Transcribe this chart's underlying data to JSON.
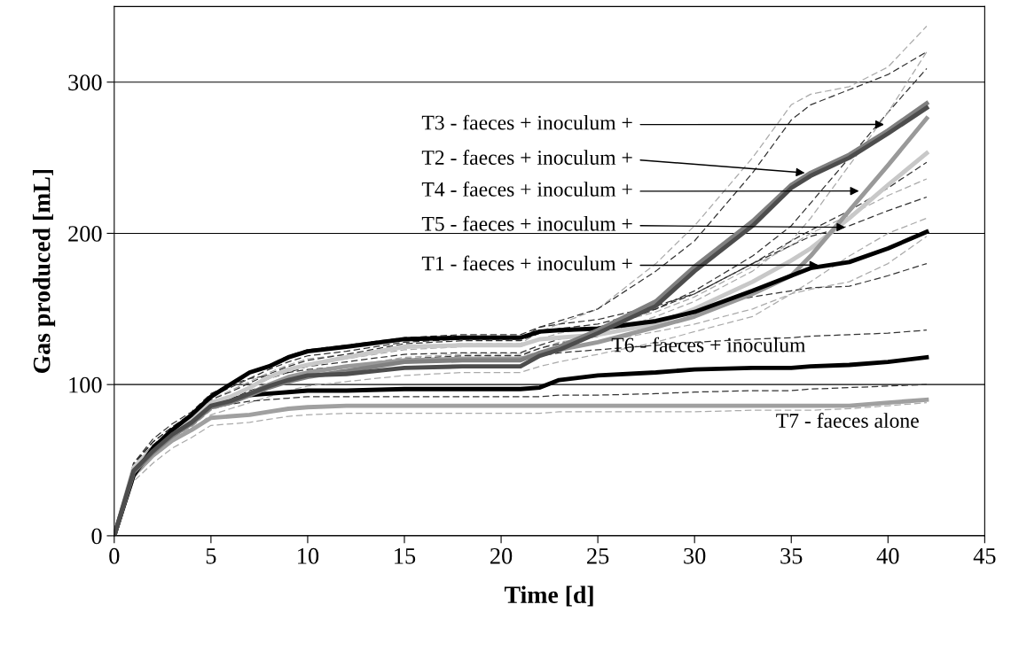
{
  "chart_data": {
    "type": "line",
    "xlabel": "Time [d]",
    "ylabel": "Gas produced [mL]",
    "x": [
      0,
      1,
      2,
      3,
      4,
      5,
      6,
      7,
      8,
      9,
      10,
      12,
      15,
      18,
      21,
      22,
      23,
      25,
      28,
      30,
      33,
      35,
      36,
      38,
      40,
      42
    ],
    "xlim": [
      0,
      45
    ],
    "xticks": [
      0,
      5,
      10,
      15,
      20,
      25,
      30,
      35,
      40,
      45
    ],
    "ylim": [
      0,
      350
    ],
    "yticks": [
      0,
      100,
      200,
      300
    ],
    "grid": "y",
    "series": [
      {
        "color": "#aaaaaa",
        "line_style": "dashed",
        "values": [
          0,
          45,
          60,
          70,
          78,
          90,
          96,
          102,
          108,
          113,
          117,
          120,
          125,
          127,
          127,
          135,
          140,
          150,
          180,
          205,
          250,
          285,
          292,
          297,
          310,
          337
        ]
      },
      {
        "color": "#333333",
        "line_style": "dashed",
        "values": [
          0,
          48,
          62,
          72,
          80,
          92,
          98,
          104,
          110,
          115,
          119,
          122,
          128,
          130,
          130,
          138,
          142,
          150,
          175,
          195,
          240,
          275,
          285,
          295,
          305,
          320
        ]
      },
      {
        "color": "#333333",
        "line_style": "dashed",
        "values": [
          0,
          44,
          58,
          68,
          76,
          88,
          92,
          98,
          104,
          108,
          112,
          115,
          120,
          121,
          121,
          126,
          130,
          135,
          150,
          162,
          185,
          205,
          220,
          250,
          280,
          309
        ]
      },
      {
        "color": "#aaaaaa",
        "line_style": "dashed",
        "values": [
          0,
          42,
          55,
          65,
          73,
          84,
          88,
          94,
          100,
          104,
          108,
          112,
          118,
          120,
          120,
          124,
          128,
          132,
          145,
          155,
          175,
          195,
          210,
          245,
          280,
          320
        ]
      },
      {
        "color": "#333333",
        "line_style": "dashed",
        "values": [
          0,
          46,
          60,
          70,
          79,
          90,
          95,
          101,
          107,
          112,
          116,
          120,
          127,
          129,
          129,
          134,
          137,
          140,
          150,
          160,
          180,
          195,
          202,
          215,
          230,
          247
        ]
      },
      {
        "color": "#aaaaaa",
        "line_style": "dashed",
        "values": [
          0,
          44,
          57,
          67,
          76,
          87,
          92,
          98,
          104,
          109,
          113,
          117,
          123,
          125,
          125,
          130,
          134,
          138,
          148,
          158,
          178,
          192,
          200,
          212,
          225,
          236
        ]
      },
      {
        "color": "#333333",
        "line_style": "dashed",
        "values": [
          0,
          47,
          62,
          72,
          81,
          93,
          101,
          108,
          113,
          119,
          123,
          126,
          131,
          133,
          133,
          138,
          140,
          143,
          152,
          160,
          180,
          192,
          198,
          205,
          215,
          224
        ]
      },
      {
        "color": "#aaaaaa",
        "line_style": "dashed",
        "values": [
          0,
          40,
          54,
          64,
          72,
          83,
          88,
          93,
          98,
          102,
          106,
          110,
          115,
          118,
          118,
          122,
          125,
          128,
          135,
          140,
          150,
          160,
          163,
          168,
          180,
          198
        ]
      },
      {
        "color": "#333333",
        "line_style": "dashed",
        "values": [
          0,
          42,
          56,
          66,
          74,
          85,
          90,
          96,
          100,
          105,
          108,
          112,
          117,
          119,
          119,
          124,
          127,
          132,
          142,
          150,
          158,
          162,
          164,
          165,
          172,
          180
        ]
      },
      {
        "color": "#aaaaaa",
        "line_style": "dashed",
        "values": [
          0,
          38,
          52,
          62,
          70,
          80,
          84,
          88,
          92,
          96,
          99,
          102,
          106,
          108,
          108,
          112,
          115,
          120,
          128,
          135,
          145,
          160,
          168,
          185,
          200,
          210
        ]
      },
      {
        "color": "#333333",
        "line_style": "dashed",
        "values": [
          0,
          48,
          64,
          74,
          82,
          94,
          100,
          104,
          106,
          108,
          110,
          112,
          115,
          117,
          117,
          119,
          121,
          123,
          126,
          128,
          130,
          131,
          132,
          133,
          134,
          136
        ]
      },
      {
        "color": "#333333",
        "line_style": "dashed",
        "values": [
          0,
          40,
          55,
          66,
          74,
          84,
          87,
          89,
          90,
          91,
          92,
          92,
          92,
          92,
          92,
          92,
          93,
          93,
          94,
          95,
          96,
          96,
          97,
          98,
          99,
          100
        ]
      },
      {
        "color": "#aaaaaa",
        "line_style": "dashed",
        "values": [
          0,
          36,
          48,
          58,
          65,
          73,
          74,
          75,
          77,
          79,
          80,
          81,
          81,
          81,
          81,
          81,
          82,
          82,
          82,
          82,
          83,
          83,
          83,
          84,
          86,
          88
        ]
      },
      {
        "color": "#a0a0a0",
        "line_style": "solid",
        "values": [
          0,
          40,
          53,
          63,
          70,
          78,
          79,
          80,
          82,
          84,
          85,
          86,
          86,
          86,
          86,
          86,
          86,
          86,
          86,
          86,
          86,
          86,
          86,
          86,
          88,
          90
        ]
      },
      {
        "color": "#000000",
        "line_style": "solid",
        "values": [
          0,
          42,
          57,
          68,
          76,
          86,
          90,
          93,
          94,
          95,
          96,
          96,
          97,
          97,
          97,
          98,
          103,
          106,
          108,
          110,
          111,
          111,
          112,
          113,
          115,
          118
        ]
      },
      {
        "color": "#c8c8c8",
        "line_style": "solid",
        "values": [
          0,
          45,
          58,
          68,
          77,
          88,
          92,
          98,
          105,
          110,
          113,
          118,
          125,
          126,
          126,
          130,
          131,
          133,
          140,
          150,
          168,
          182,
          190,
          210,
          232,
          253
        ]
      },
      {
        "color": "#999999",
        "line_style": "solid",
        "values": [
          0,
          42,
          56,
          66,
          75,
          85,
          88,
          94,
          100,
          105,
          108,
          112,
          116,
          117,
          117,
          120,
          123,
          128,
          138,
          145,
          160,
          172,
          185,
          215,
          245,
          276
        ]
      },
      {
        "color": "#000000",
        "line_style": "solid",
        "values": [
          0,
          40,
          58,
          70,
          80,
          92,
          100,
          108,
          112,
          118,
          122,
          125,
          130,
          131,
          131,
          135,
          136,
          137,
          142,
          148,
          162,
          172,
          177,
          181,
          190,
          201
        ]
      },
      {
        "color": "#808080",
        "line_style": "solid",
        "values": [
          0,
          42,
          55,
          66,
          74,
          85,
          88,
          93,
          98,
          102,
          105,
          109,
          115,
          116,
          116,
          121,
          125,
          136,
          155,
          178,
          208,
          232,
          240,
          252,
          268,
          286
        ]
      },
      {
        "color": "#4d4d4d",
        "line_style": "solid",
        "values": [
          0,
          43,
          56,
          67,
          75,
          86,
          89,
          94,
          99,
          103,
          106,
          107,
          111,
          112,
          112,
          119,
          123,
          134,
          152,
          175,
          205,
          230,
          238,
          250,
          266,
          283
        ]
      }
    ],
    "annotations": [
      {
        "text": "T3 - faeces + inoculum +",
        "x": 39.8,
        "y": 272
      },
      {
        "text": "T2 - faeces + inoculum +",
        "x": 35.7,
        "y": 240
      },
      {
        "text": "T4 - faeces + inoculum +",
        "x": 38.5,
        "y": 228
      },
      {
        "text": "T5 - faeces + inoculum +",
        "x": 37.8,
        "y": 204
      },
      {
        "text": "T1 - faeces + inoculum +",
        "x": 36.4,
        "y": 179
      },
      "T6 - faeces + inoculum",
      "T7 - faeces alone"
    ]
  }
}
